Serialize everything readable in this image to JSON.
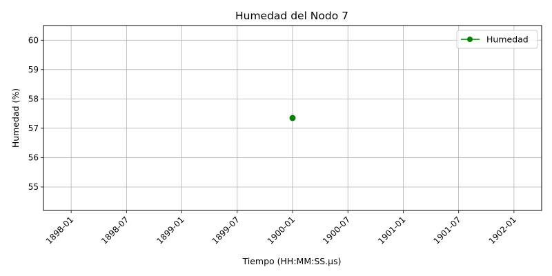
{
  "chart_data": {
    "type": "line",
    "title": "Humedad del Nodo 7",
    "xlabel": "Tiempo (HH:MM:SS.µs)",
    "ylabel": "Humedad (%)",
    "x_ticks": [
      "1898-01",
      "1898-07",
      "1899-01",
      "1899-07",
      "1900-01",
      "1900-07",
      "1901-01",
      "1901-07",
      "1902-01"
    ],
    "y_ticks": [
      55,
      56,
      57,
      58,
      59,
      60
    ],
    "xlim": [
      "1897-10",
      "1902-04"
    ],
    "ylim": [
      54.2,
      60.5
    ],
    "grid": true,
    "legend_position": "top-right",
    "series": [
      {
        "name": "Humedad",
        "color": "#008000",
        "marker": "circle",
        "points": [
          {
            "x": "1900-01",
            "y": 57.35
          }
        ]
      }
    ]
  }
}
